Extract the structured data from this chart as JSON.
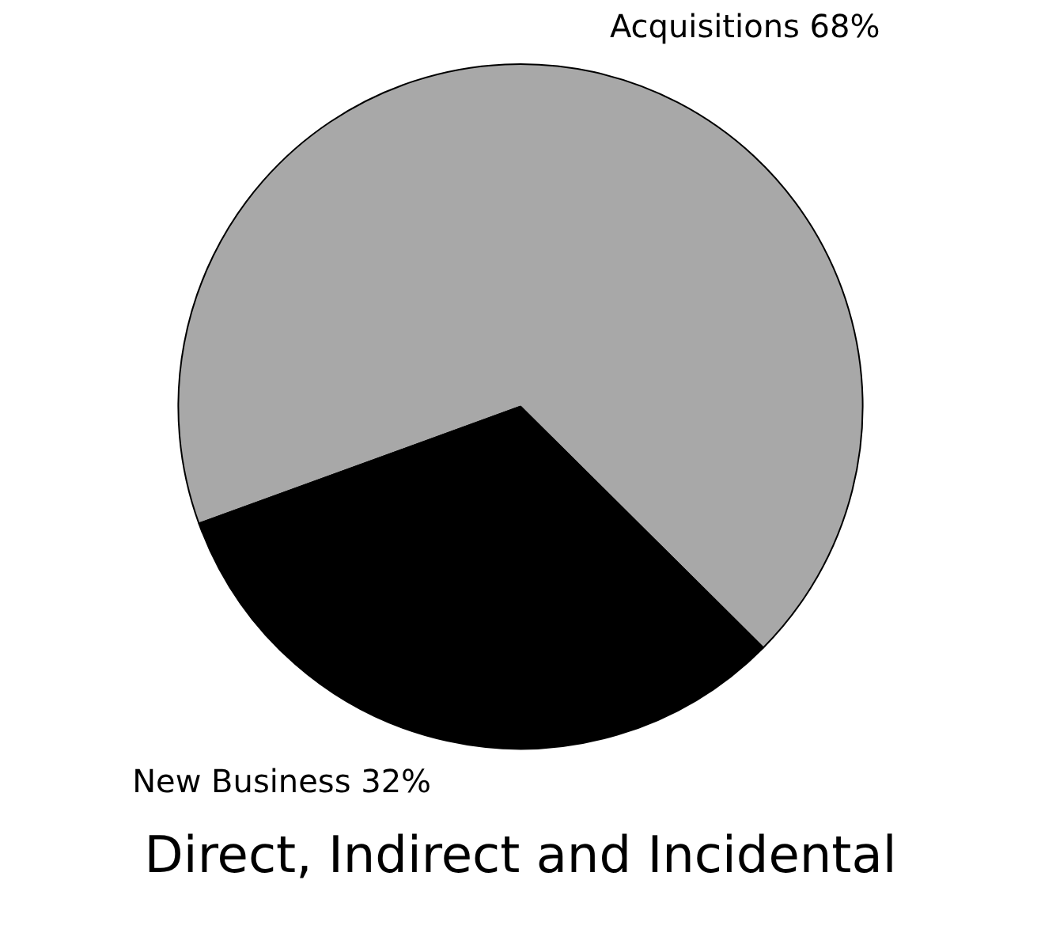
{
  "chart_data": {
    "type": "pie",
    "title": "Direct, Indirect and Incidental",
    "categories": [
      "Acquisitions",
      "New Business"
    ],
    "values": [
      68,
      32
    ],
    "colors": [
      "#a8a8a8",
      "#000000"
    ],
    "value_labels": [
      "68%",
      "32%"
    ],
    "legend": false
  }
}
